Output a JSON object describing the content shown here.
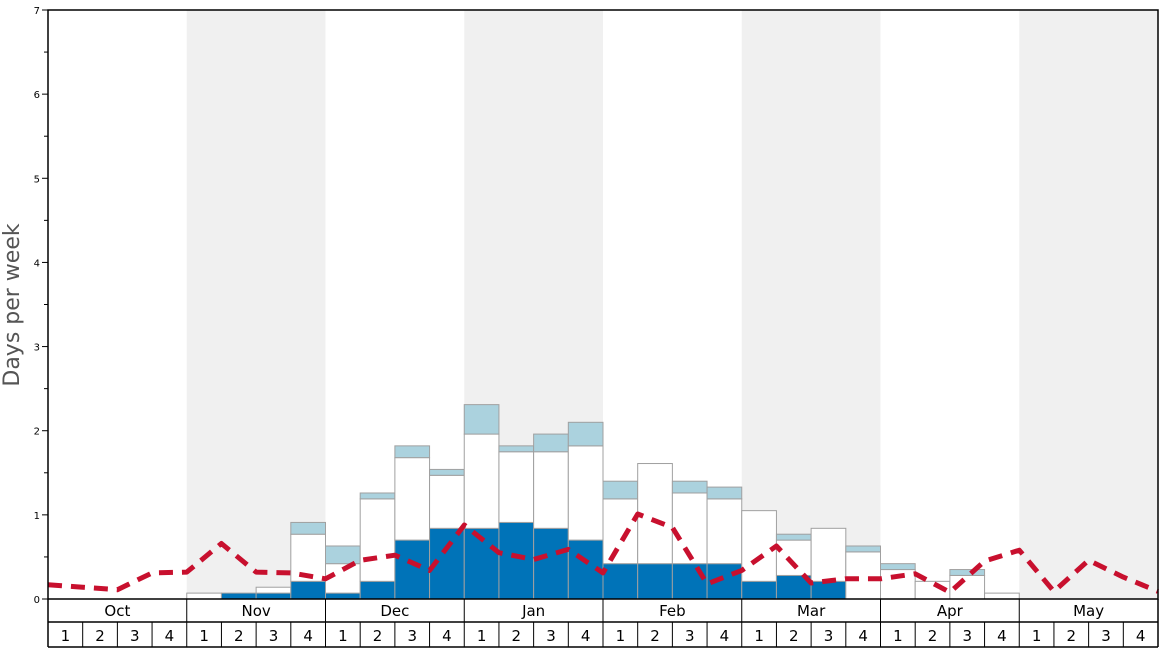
{
  "chart_data": {
    "type": "bar",
    "ylabel": "Days per week",
    "ylim": [
      0,
      7
    ],
    "y_ticks": [
      "0",
      "1",
      "2",
      "3",
      "4",
      "5",
      "6",
      "7"
    ],
    "months": [
      "Oct",
      "Nov",
      "Dec",
      "Jan",
      "Feb",
      "Mar",
      "Apr",
      "May"
    ],
    "week_labels": [
      "1",
      "2",
      "3",
      "4"
    ],
    "colors": {
      "dark": "#0073b8",
      "white": "#ffffff",
      "light": "#abd2de",
      "line": "#c8102e",
      "band": "#f0f0f0"
    },
    "series": [
      {
        "key": "dark",
        "values": [
          0,
          0,
          0,
          0,
          0,
          0.07,
          0.07,
          0.21,
          0.07,
          0.21,
          0.7,
          0.84,
          0.84,
          0.91,
          0.84,
          0.7,
          0.42,
          0.42,
          0.42,
          0.42,
          0.21,
          0.28,
          0.21,
          0,
          0,
          0,
          0,
          0,
          0,
          0,
          0,
          0
        ]
      },
      {
        "key": "white",
        "values": [
          0,
          0,
          0,
          0,
          0.07,
          0,
          0.07,
          0.56,
          0.35,
          0.98,
          0.98,
          0.63,
          1.12,
          0.84,
          0.91,
          1.12,
          0.77,
          1.19,
          0.84,
          0.77,
          0.84,
          0.42,
          0.63,
          0.56,
          0.35,
          0.21,
          0.28,
          0.07,
          0,
          0,
          0,
          0
        ]
      },
      {
        "key": "light",
        "values": [
          0,
          0,
          0,
          0,
          0,
          0,
          0,
          0.14,
          0.21,
          0.07,
          0.14,
          0.07,
          0.35,
          0.07,
          0.21,
          0.28,
          0.21,
          0,
          0.14,
          0.14,
          0,
          0.07,
          0,
          0.07,
          0.07,
          0,
          0.07,
          0,
          0,
          0,
          0,
          0
        ]
      }
    ],
    "average_line": [
      0.17,
      0.14,
      0.11,
      0.31,
      0.32,
      0.66,
      0.32,
      0.31,
      0.24,
      0.46,
      0.52,
      0.34,
      0.88,
      0.55,
      0.47,
      0.59,
      0.31,
      1.01,
      0.85,
      0.18,
      0.34,
      0.63,
      0.19,
      0.24,
      0.24,
      0.3,
      0.08,
      0.45,
      0.58,
      0.09,
      0.46,
      0.26,
      0.09
    ]
  }
}
